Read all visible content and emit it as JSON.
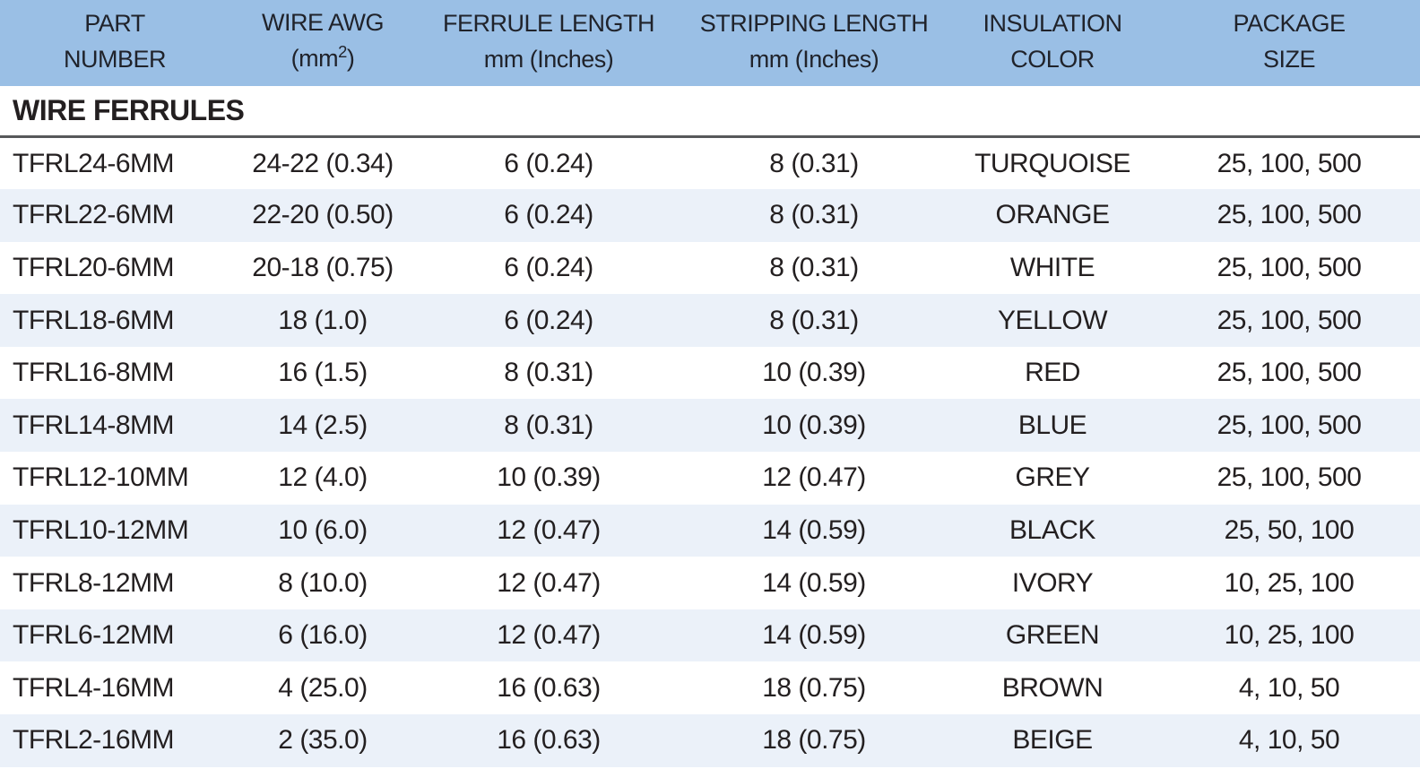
{
  "table": {
    "section_title": "WIRE FERRULES",
    "columns": [
      {
        "id": "part_number",
        "line1": "PART",
        "line2": "NUMBER"
      },
      {
        "id": "wire_awg",
        "line1": "WIRE AWG",
        "line2_pre": "(mm",
        "line2_sup": "2",
        "line2_post": ")"
      },
      {
        "id": "ferrule_length",
        "line1": "FERRULE LENGTH",
        "line2": "mm (Inches)"
      },
      {
        "id": "stripping_length",
        "line1": "STRIPPING LENGTH",
        "line2": "mm (Inches)"
      },
      {
        "id": "insulation_color",
        "line1": "INSULATION",
        "line2": "COLOR"
      },
      {
        "id": "package_size",
        "line1": "PACKAGE",
        "line2": "SIZE"
      }
    ],
    "rows": [
      [
        "TFRL24-6MM",
        "24-22 (0.34)",
        "6 (0.24)",
        "8 (0.31)",
        "TURQUOISE",
        "25, 100, 500"
      ],
      [
        "TFRL22-6MM",
        "22-20 (0.50)",
        "6 (0.24)",
        "8 (0.31)",
        "ORANGE",
        "25, 100, 500"
      ],
      [
        "TFRL20-6MM",
        "20-18 (0.75)",
        "6 (0.24)",
        "8 (0.31)",
        "WHITE",
        "25, 100, 500"
      ],
      [
        "TFRL18-6MM",
        "18 (1.0)",
        "6 (0.24)",
        "8 (0.31)",
        "YELLOW",
        "25, 100, 500"
      ],
      [
        "TFRL16-8MM",
        "16 (1.5)",
        "8 (0.31)",
        "10 (0.39)",
        "RED",
        "25, 100, 500"
      ],
      [
        "TFRL14-8MM",
        "14 (2.5)",
        "8 (0.31)",
        "10 (0.39)",
        "BLUE",
        "25, 100, 500"
      ],
      [
        "TFRL12-10MM",
        "12 (4.0)",
        "10 (0.39)",
        "12 (0.47)",
        "GREY",
        "25, 100, 500"
      ],
      [
        "TFRL10-12MM",
        "10 (6.0)",
        "12 (0.47)",
        "14 (0.59)",
        "BLACK",
        "25, 50, 100"
      ],
      [
        "TFRL8-12MM",
        "8 (10.0)",
        "12 (0.47)",
        "14 (0.59)",
        "IVORY",
        "10, 25, 100"
      ],
      [
        "TFRL6-12MM",
        "6 (16.0)",
        "12 (0.47)",
        "14 (0.59)",
        "GREEN",
        "10, 25, 100"
      ],
      [
        "TFRL4-16MM",
        "4 (25.0)",
        "16 (0.63)",
        "18 (0.75)",
        "BROWN",
        "4, 10, 50"
      ],
      [
        "TFRL2-16MM",
        "2 (35.0)",
        "16 (0.63)",
        "18 (0.75)",
        "BEIGE",
        "4, 10, 50"
      ]
    ],
    "colors": {
      "header_bg": "#9abfe5",
      "stripe_bg": "#ebf1f9",
      "text": "#231f20",
      "divider": "#57585a"
    }
  }
}
